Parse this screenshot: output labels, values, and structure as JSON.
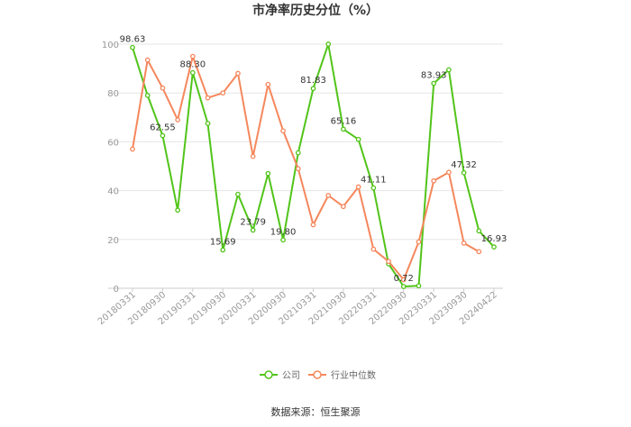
{
  "chart_data": {
    "type": "line",
    "title": "市净率历史分位（%）",
    "xlabel": "",
    "ylabel": "",
    "ylim": [
      0,
      100
    ],
    "yticks": [
      0,
      20,
      40,
      60,
      80,
      100
    ],
    "x": [
      "20180331",
      "20180630",
      "20180930",
      "20181231",
      "20190331",
      "20190630",
      "20190930",
      "20191231",
      "20200331",
      "20200630",
      "20200930",
      "20201231",
      "20210331",
      "20210630",
      "20210930",
      "20211231",
      "20220331",
      "20220630",
      "20220930",
      "20221231",
      "20230331",
      "20230630",
      "20230930",
      "20231231",
      "20240422"
    ],
    "xtick_labels": [
      "20180331",
      "20180930",
      "20190331",
      "20190930",
      "20200331",
      "20200930",
      "20210331",
      "20210930",
      "20220331",
      "20220930",
      "20230331",
      "20230930",
      "20240422"
    ],
    "grid": true,
    "legend_position": "bottom",
    "series": [
      {
        "name": "公司",
        "color": "#52c41a",
        "values": [
          98.63,
          79,
          62.55,
          32,
          88.3,
          67.5,
          15.69,
          38.5,
          23.79,
          47,
          19.8,
          55.5,
          81.83,
          100,
          65.16,
          61,
          41.11,
          10,
          0.72,
          1,
          83.93,
          89.5,
          47.32,
          23.5,
          16.93
        ]
      },
      {
        "name": "行业中位数",
        "color": "#f5875c",
        "values": [
          57,
          93.5,
          82,
          69,
          95,
          78,
          80,
          88,
          54,
          83.5,
          64.5,
          49,
          26,
          38,
          33.5,
          41.5,
          16,
          11,
          3.5,
          19,
          44,
          47.5,
          18.5,
          15,
          null
        ]
      }
    ],
    "data_labels": [
      {
        "series": 0,
        "index": 0,
        "text": "98.63"
      },
      {
        "series": 0,
        "index": 2,
        "text": "62.55"
      },
      {
        "series": 0,
        "index": 4,
        "text": "88.30"
      },
      {
        "series": 0,
        "index": 6,
        "text": "15.69"
      },
      {
        "series": 0,
        "index": 8,
        "text": "23.79"
      },
      {
        "series": 0,
        "index": 10,
        "text": "19.80"
      },
      {
        "series": 0,
        "index": 12,
        "text": "81.83"
      },
      {
        "series": 0,
        "index": 14,
        "text": "65.16"
      },
      {
        "series": 0,
        "index": 16,
        "text": "41.11"
      },
      {
        "series": 0,
        "index": 18,
        "text": "0.72"
      },
      {
        "series": 0,
        "index": 20,
        "text": "83.93"
      },
      {
        "series": 0,
        "index": 22,
        "text": "47.32"
      },
      {
        "series": 0,
        "index": 24,
        "text": "16.93"
      }
    ]
  },
  "source_text": "数据来源：恒生聚源"
}
